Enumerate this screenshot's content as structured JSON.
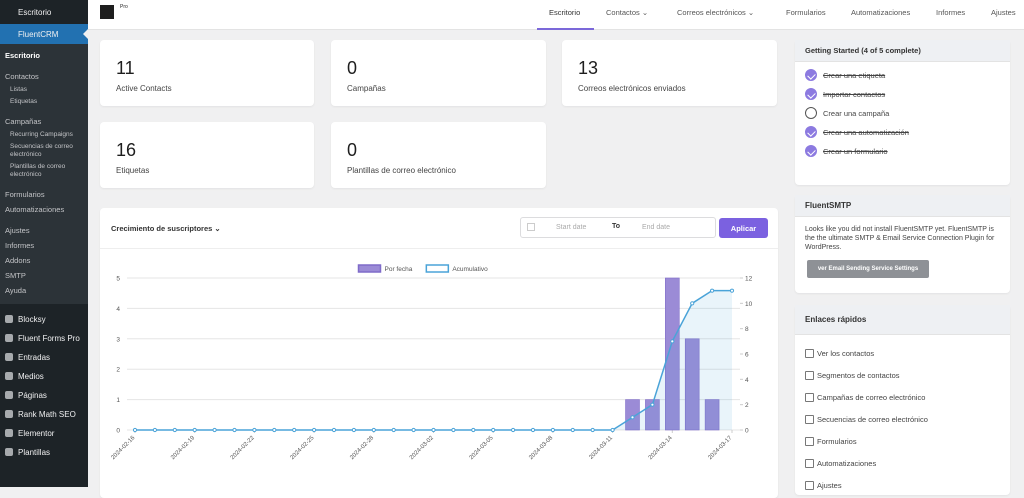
{
  "sidebar": {
    "top": "Escritorio",
    "plugin": "FluentCRM",
    "menu": [
      {
        "label": "Escritorio"
      },
      {
        "label": "Contactos",
        "children": [
          "Listas",
          "Etiquetas"
        ]
      },
      {
        "label": "Campañas",
        "children": [
          "Recurring Campaigns",
          "Secuencias de correo electrónico",
          "Plantillas de correo electrónico"
        ]
      },
      {
        "label": "Formularios"
      },
      {
        "label": "Automatizaciones"
      },
      {
        "label": "Ajustes"
      },
      {
        "label": "Informes"
      },
      {
        "label": "Addons"
      },
      {
        "label": "SMTP"
      },
      {
        "label": "Ayuda"
      }
    ],
    "bottom": [
      "Blocksy",
      "Fluent Forms Pro",
      "Entradas",
      "Medios",
      "Páginas",
      "Rank Math SEO",
      "Elementor",
      "Plantillas"
    ]
  },
  "topbar": {
    "logo": "Pro",
    "nav": [
      "Escritorio",
      "Contactos",
      "Correos electrónicos",
      "Formularios",
      "Automatizaciones",
      "Informes",
      "Ajustes"
    ]
  },
  "stats": [
    {
      "value": 11,
      "label": "Active Contacts"
    },
    {
      "value": 0,
      "label": "Campañas"
    },
    {
      "value": 13,
      "label": "Correos electrónicos enviados"
    },
    {
      "value": 16,
      "label": "Etiquetas"
    },
    {
      "value": 0,
      "label": "Plantillas de correo electrónico"
    }
  ],
  "getting_started": {
    "title": "Getting Started (4 of 5 complete)",
    "items": [
      {
        "label": "Crear una etiqueta",
        "done": true
      },
      {
        "label": "Importar contactos",
        "done": true
      },
      {
        "label": "Crear una campaña",
        "done": false
      },
      {
        "label": "Crear una automatización",
        "done": true
      },
      {
        "label": "Crear un formulario",
        "done": true
      }
    ]
  },
  "smtp": {
    "title": "FluentSMTP",
    "text": "Looks like you did not install FluentSMTP yet. FluentSMTP is the the ultimate SMTP & Email Service Connection Plugin for WordPress.",
    "button": "ver Email Sending Service Settings"
  },
  "quick_links": {
    "title": "Enlaces rápidos",
    "items": [
      "Ver los contactos",
      "Segmentos de contactos",
      "Campañas de correo electrónico",
      "Secuencias de correo electrónico",
      "Formularios",
      "Automatizaciones",
      "Ajustes"
    ]
  },
  "chart_panel": {
    "title": "Crecimiento de suscriptores",
    "start_placeholder": "Start date",
    "to": "To",
    "end_placeholder": "End date",
    "button": "Aplicar"
  },
  "chart_data": {
    "type": "bar",
    "categories": [
      "2024-02-16",
      null,
      null,
      "2024-02-19",
      null,
      null,
      "2024-02-22",
      null,
      null,
      "2024-02-25",
      null,
      null,
      "2024-02-28",
      null,
      null,
      "2024-03-02",
      null,
      null,
      "2024-03-05",
      null,
      null,
      "2024-03-08",
      null,
      null,
      "2024-03-11",
      null,
      null,
      "2024-03-14",
      null,
      null,
      "2024-03-17"
    ],
    "series": [
      {
        "name": "Por fecha",
        "type": "bar",
        "color": "#9b8bd6",
        "values": [
          0,
          0,
          0,
          0,
          0,
          0,
          0,
          0,
          0,
          0,
          0,
          0,
          0,
          0,
          0,
          0,
          0,
          0,
          0,
          0,
          0,
          0,
          0,
          0,
          0,
          1,
          1,
          5,
          3,
          1,
          0
        ]
      },
      {
        "name": "Acumulativo",
        "type": "line",
        "axis": "y2",
        "color": "#4aa3d8",
        "values": [
          0,
          0,
          0,
          0,
          0,
          0,
          0,
          0,
          0,
          0,
          0,
          0,
          0,
          0,
          0,
          0,
          0,
          0,
          0,
          0,
          0,
          0,
          0,
          0,
          0,
          1,
          2,
          7,
          10,
          11,
          11
        ]
      }
    ],
    "ylim": [
      0,
      5
    ],
    "yticks": [
      0,
      1,
      2,
      3,
      4,
      5
    ],
    "y2lim": [
      0,
      12
    ],
    "y2ticks": [
      0,
      2,
      4,
      6,
      8,
      10,
      12
    ],
    "grid": true,
    "legend": "top"
  }
}
